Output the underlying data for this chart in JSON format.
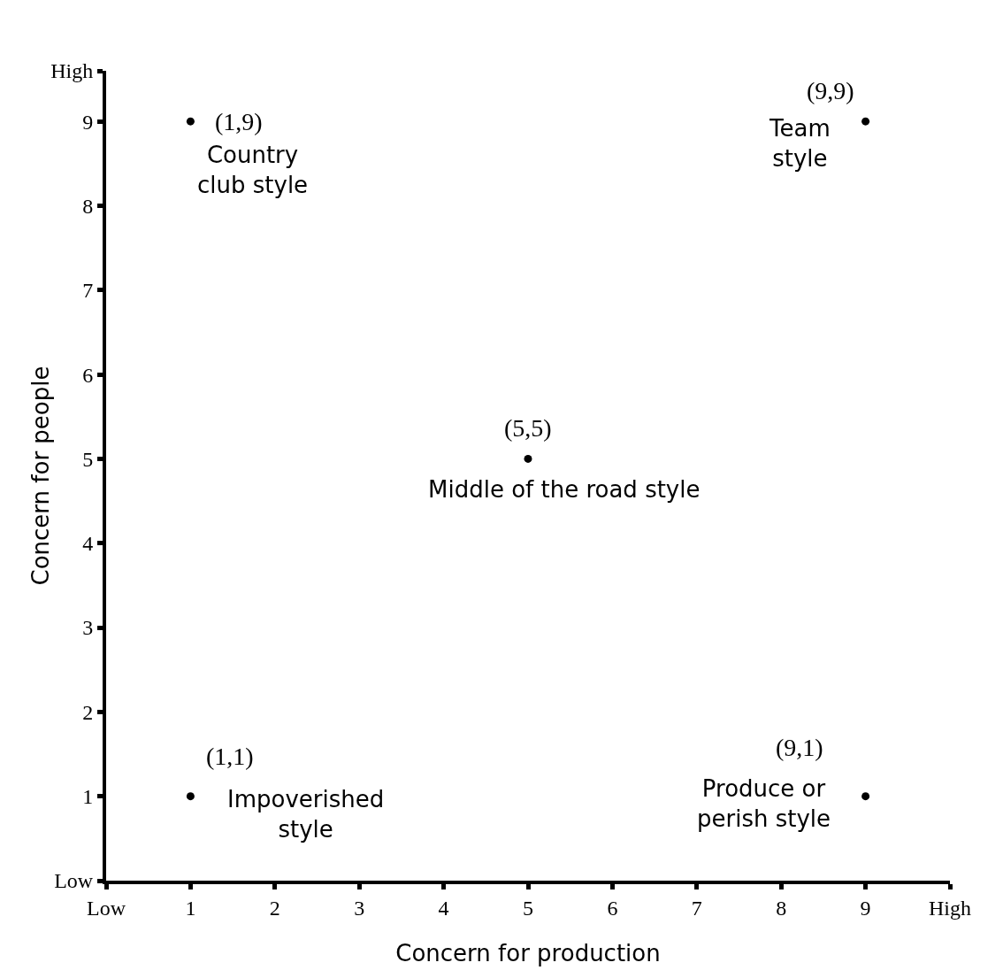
{
  "chart_data": {
    "type": "scatter",
    "xlabel": "Concern for production",
    "ylabel": "Concern for people",
    "x": [
      1,
      9,
      5,
      1,
      9
    ],
    "values": [
      9,
      9,
      5,
      1,
      1
    ],
    "color": "#000000",
    "marker": "circle",
    "annotations": [
      {
        "text": "(1,9)",
        "x": 1,
        "y": 9
      },
      {
        "text": "Country\nclub style",
        "x": 1,
        "y": 9
      },
      {
        "text": "(9,9)",
        "x": 9,
        "y": 9
      },
      {
        "text": "Team\nstyle",
        "x": 9,
        "y": 9
      },
      {
        "text": "(5,5)",
        "x": 5,
        "y": 5
      },
      {
        "text": "Middle of the road style",
        "x": 5,
        "y": 5
      },
      {
        "text": "(1,1)",
        "x": 1,
        "y": 1
      },
      {
        "text": "Impoverished\nstyle",
        "x": 1,
        "y": 1
      },
      {
        "text": "(9,1)",
        "x": 9,
        "y": 1
      },
      {
        "text": "Produce or\nperish style",
        "x": 9,
        "y": 1
      }
    ],
    "xlim": [
      0,
      10
    ],
    "xticks": [
      {
        "value": 0,
        "label": "Low"
      },
      1,
      2,
      3,
      4,
      5,
      6,
      7,
      8,
      9,
      {
        "value": 10,
        "label": "High"
      }
    ],
    "ylim": [
      0,
      9.6
    ],
    "yticks": [
      {
        "value": 0,
        "label": "Low"
      },
      1,
      2,
      3,
      4,
      5,
      6,
      7,
      8,
      9,
      {
        "value": 9.6,
        "label": "High"
      }
    ],
    "grid": false
  }
}
